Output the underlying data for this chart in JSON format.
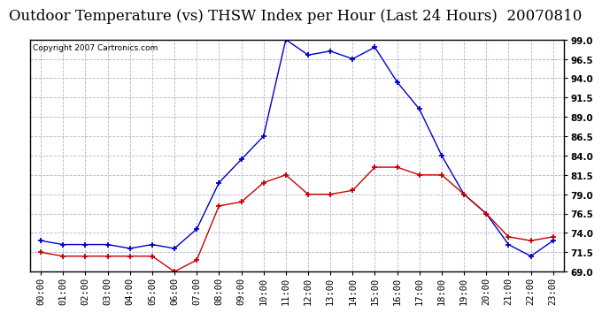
{
  "title": "Outdoor Temperature (vs) THSW Index per Hour (Last 24 Hours)  20070810",
  "copyright_text": "Copyright 2007 Cartronics.com",
  "hours": [
    "00:00",
    "01:00",
    "02:00",
    "03:00",
    "04:00",
    "05:00",
    "06:00",
    "07:00",
    "08:00",
    "09:00",
    "10:00",
    "11:00",
    "12:00",
    "13:00",
    "14:00",
    "15:00",
    "16:00",
    "17:00",
    "18:00",
    "19:00",
    "20:00",
    "21:00",
    "22:00",
    "23:00"
  ],
  "blue_data": [
    73.0,
    72.5,
    72.5,
    72.5,
    72.0,
    72.5,
    72.0,
    74.5,
    80.5,
    83.5,
    86.5,
    99.0,
    97.0,
    97.5,
    96.5,
    98.0,
    93.5,
    90.0,
    84.0,
    79.0,
    76.5,
    72.5,
    71.0,
    73.0
  ],
  "red_data": [
    71.5,
    71.0,
    71.0,
    71.0,
    71.0,
    71.0,
    69.0,
    70.5,
    77.5,
    78.0,
    80.5,
    81.5,
    79.0,
    79.0,
    79.5,
    82.5,
    82.5,
    81.5,
    81.5,
    79.0,
    76.5,
    73.5,
    73.0,
    73.5
  ],
  "ylim": [
    69.0,
    99.0
  ],
  "yticks": [
    69.0,
    71.5,
    74.0,
    76.5,
    79.0,
    81.5,
    84.0,
    86.5,
    89.0,
    91.5,
    94.0,
    96.5,
    99.0
  ],
  "blue_color": "#0000cc",
  "red_color": "#cc0000",
  "bg_color": "#ffffff",
  "grid_color": "#aaaacc",
  "title_fontsize": 12,
  "tick_fontsize": 7.5,
  "copyright_fontsize": 6.5
}
